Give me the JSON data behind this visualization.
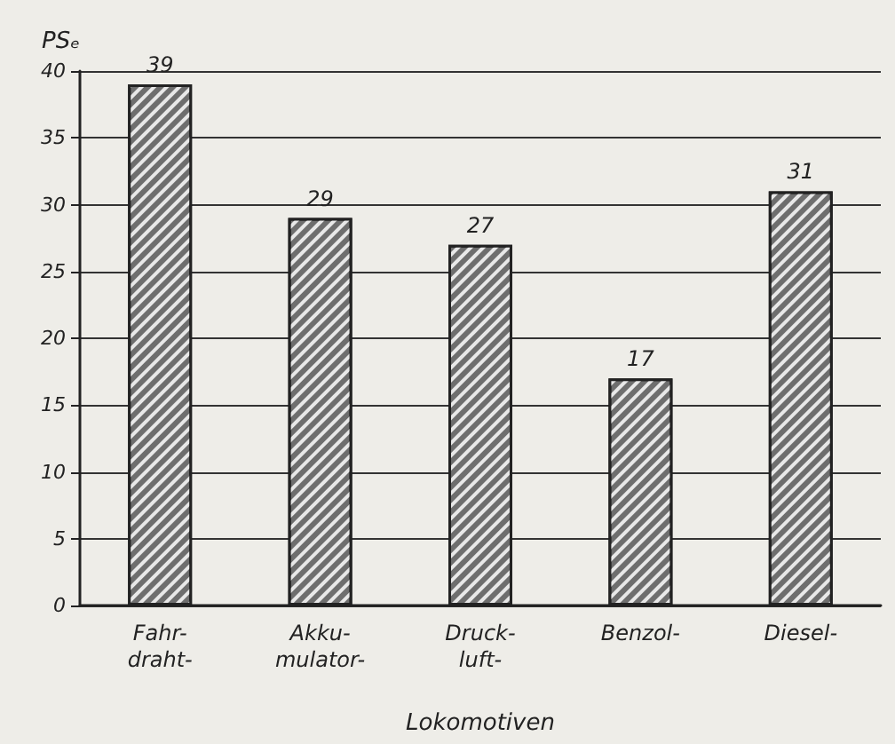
{
  "chart_data": {
    "type": "bar",
    "ylabel": "PSₑ",
    "xlabel": "Lokomotiven",
    "categories": [
      "Fahr-\ndraht-",
      "Akku-\nmulator-",
      "Druck-\nluft-",
      "Benzol-",
      "Diesel-"
    ],
    "values": [
      39,
      29,
      27,
      17,
      31
    ],
    "color": "#6e6e6e",
    "ylim": [
      0,
      40
    ],
    "yticks": [
      0,
      5,
      10,
      15,
      20,
      25,
      30,
      35,
      40
    ],
    "grid": "y",
    "data_labels": true
  }
}
